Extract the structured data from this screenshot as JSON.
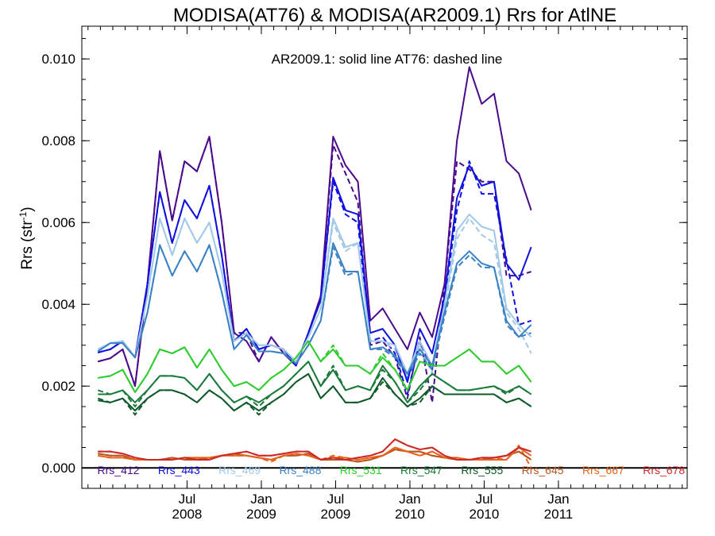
{
  "chart_data": {
    "type": "line",
    "title": "MODISA(AT76) & MODISA(AR2009.1)  Rrs for AtlNE",
    "subtitle": "AR2009.1: solid line   AT76: dashed line",
    "ylabel": "Rrs (str",
    "ylabel_sup": "-1",
    "ylabel_close": ")",
    "xlim": [
      0,
      48.9
    ],
    "ylim": [
      -0.0005,
      0.0108
    ],
    "yticks": [
      0.0,
      0.002,
      0.004,
      0.006,
      0.008,
      0.01
    ],
    "ytick_labels": [
      "0.000",
      "0.002",
      "0.004",
      "0.006",
      "0.008",
      "0.010"
    ],
    "xtick_labels": [
      {
        "pos": 8.5,
        "lines": [
          "Jul",
          "2008"
        ]
      },
      {
        "pos": 14.5,
        "lines": [
          "Jan",
          "2009"
        ]
      },
      {
        "pos": 20.5,
        "lines": [
          "Jul",
          "2009"
        ]
      },
      {
        "pos": 26.5,
        "lines": [
          "Jan",
          "2010"
        ]
      },
      {
        "pos": 32.5,
        "lines": [
          "Jul",
          "2010"
        ]
      },
      {
        "pos": 38.5,
        "lines": [
          "Jan",
          "2011"
        ]
      }
    ],
    "grid": false,
    "legend_position": "bottom",
    "zero_line": true,
    "series": [
      {
        "name": "Rrs_412",
        "color": "#4a0a8a",
        "solid": [
          0.0026,
          0.00268,
          0.0029,
          0.002,
          0.0045,
          0.00775,
          0.00605,
          0.0075,
          0.00725,
          0.0081,
          0.006,
          0.0033,
          0.0031,
          0.0026,
          0.0032,
          0.0028,
          0.0025,
          0.0033,
          0.0042,
          0.0081,
          0.0074,
          0.007,
          0.0036,
          0.0039,
          0.0034,
          0.0029,
          0.0038,
          0.0032,
          0.0045,
          0.008,
          0.0098,
          0.0089,
          0.00915,
          0.0075,
          0.0072,
          0.0063
        ],
        "dashed": [
          0.0026,
          0.00268,
          0.0029,
          0.002,
          0.0045,
          0.00775,
          0.00605,
          0.0075,
          0.00725,
          0.0081,
          0.006,
          0.0033,
          0.0033,
          0.0026,
          0.0032,
          0.0028,
          0.0025,
          0.0033,
          0.0042,
          0.0079,
          0.0072,
          0.0065,
          0.003,
          0.0031,
          0.0027,
          0.0017,
          0.0032,
          0.0016,
          0.0045,
          0.0075,
          0.0073,
          0.007,
          0.007,
          0.0047,
          0.0047,
          0.0048
        ]
      },
      {
        "name": "Rrs_443",
        "color": "#1010e0",
        "solid": [
          0.00282,
          0.0029,
          0.0031,
          0.0027,
          0.0045,
          0.00675,
          0.0055,
          0.00655,
          0.0061,
          0.0069,
          0.0052,
          0.0031,
          0.0034,
          0.0029,
          0.003,
          0.0029,
          0.0025,
          0.0033,
          0.0041,
          0.0071,
          0.0063,
          0.0062,
          0.0033,
          0.0034,
          0.003,
          0.0021,
          0.0034,
          0.0028,
          0.0042,
          0.0066,
          0.0074,
          0.0069,
          0.007,
          0.005,
          0.0046,
          0.0054
        ],
        "dashed": [
          0.00282,
          0.0029,
          0.0031,
          0.0027,
          0.0045,
          0.00675,
          0.0055,
          0.00655,
          0.0061,
          0.0069,
          0.0052,
          0.0031,
          0.0034,
          0.0029,
          0.003,
          0.0029,
          0.0025,
          0.0033,
          0.0041,
          0.007,
          0.0062,
          0.006,
          0.0031,
          0.0032,
          0.0028,
          0.0018,
          0.0031,
          0.0024,
          0.0041,
          0.0063,
          0.0075,
          0.0067,
          0.0067,
          0.0051,
          0.0035,
          0.0036
        ]
      },
      {
        "name": "Rrs_469",
        "color": "#a0c8e8",
        "solid": [
          0.0029,
          0.00305,
          0.0031,
          0.0027,
          0.0042,
          0.0061,
          0.0052,
          0.0061,
          0.0055,
          0.006,
          0.0048,
          0.0031,
          0.0033,
          0.003,
          0.003,
          0.0029,
          0.0026,
          0.0032,
          0.0039,
          0.0061,
          0.0054,
          0.0055,
          0.0031,
          0.0031,
          0.003,
          0.0023,
          0.0031,
          0.0025,
          0.004,
          0.0058,
          0.0062,
          0.0059,
          0.0058,
          0.0039,
          0.0035,
          0.0032
        ],
        "dashed": [
          0.0029,
          0.00305,
          0.0031,
          0.0027,
          0.0042,
          0.0061,
          0.0052,
          0.0061,
          0.0055,
          0.006,
          0.0048,
          0.0031,
          0.0033,
          0.003,
          0.003,
          0.0029,
          0.0026,
          0.0032,
          0.0039,
          0.006,
          0.0053,
          0.0055,
          0.0031,
          0.0031,
          0.0029,
          0.0022,
          0.003,
          0.0023,
          0.0039,
          0.0056,
          0.0061,
          0.0057,
          0.0055,
          0.0038,
          0.0034,
          0.0028
        ]
      },
      {
        "name": "Rrs_488",
        "color": "#3a82c4",
        "solid": [
          0.00285,
          0.00305,
          0.00305,
          0.0027,
          0.0038,
          0.00545,
          0.0047,
          0.0053,
          0.0048,
          0.00545,
          0.0043,
          0.0029,
          0.00325,
          0.00285,
          0.00285,
          0.0028,
          0.00255,
          0.003,
          0.0036,
          0.0055,
          0.0048,
          0.0048,
          0.0029,
          0.00295,
          0.00275,
          0.0023,
          0.0029,
          0.0025,
          0.0038,
          0.005,
          0.0053,
          0.005,
          0.0049,
          0.0036,
          0.0032,
          0.0035
        ],
        "dashed": [
          0.00285,
          0.00305,
          0.00305,
          0.0027,
          0.0038,
          0.00545,
          0.0047,
          0.0053,
          0.0048,
          0.00545,
          0.0043,
          0.0029,
          0.00325,
          0.00285,
          0.00285,
          0.0028,
          0.00255,
          0.003,
          0.0036,
          0.0054,
          0.0047,
          0.0048,
          0.0029,
          0.0029,
          0.0027,
          0.0022,
          0.0028,
          0.0024,
          0.0037,
          0.0049,
          0.0052,
          0.0049,
          0.0049,
          0.0035,
          0.0032,
          0.0033
        ]
      },
      {
        "name": "Rrs_531",
        "color": "#2ecc2e",
        "solid": [
          0.0022,
          0.00225,
          0.0024,
          0.00185,
          0.0023,
          0.0029,
          0.0028,
          0.00295,
          0.00245,
          0.0029,
          0.0024,
          0.002,
          0.0021,
          0.0019,
          0.0022,
          0.0024,
          0.0027,
          0.0031,
          0.0026,
          0.0029,
          0.0025,
          0.0025,
          0.0023,
          0.0027,
          0.0024,
          0.0019,
          0.0026,
          0.0025,
          0.0025,
          0.0027,
          0.0029,
          0.0026,
          0.0026,
          0.0023,
          0.0025,
          0.0021
        ],
        "dashed": [
          0.0022,
          0.00225,
          0.0024,
          0.00185,
          0.0023,
          0.0029,
          0.0028,
          0.00295,
          0.00245,
          0.0029,
          0.0024,
          0.002,
          0.0021,
          0.0019,
          0.0022,
          0.0024,
          0.0027,
          0.0031,
          0.0026,
          0.003,
          0.0025,
          0.0025,
          0.0023,
          0.0028,
          0.0024,
          0.0019,
          0.0026,
          0.0025,
          0.0025,
          0.0027,
          0.0029,
          0.0026,
          0.0026,
          0.0023,
          0.0025,
          0.0021
        ]
      },
      {
        "name": "Rrs_547",
        "color": "#1a7a3a",
        "solid": [
          0.0018,
          0.0018,
          0.0019,
          0.0016,
          0.0019,
          0.00225,
          0.00225,
          0.0022,
          0.0019,
          0.0023,
          0.0019,
          0.0016,
          0.00175,
          0.0016,
          0.0018,
          0.002,
          0.0023,
          0.0026,
          0.002,
          0.0024,
          0.0019,
          0.002,
          0.0019,
          0.0025,
          0.0021,
          0.0016,
          0.002,
          0.0023,
          0.0021,
          0.0019,
          0.0019,
          0.00195,
          0.002,
          0.00185,
          0.002,
          0.0018
        ],
        "dashed": [
          0.0019,
          0.0018,
          0.0019,
          0.0015,
          0.0019,
          0.00225,
          0.00225,
          0.0022,
          0.0019,
          0.0023,
          0.0019,
          0.0016,
          0.00175,
          0.0015,
          0.0018,
          0.002,
          0.0023,
          0.0026,
          0.002,
          0.0025,
          0.0019,
          0.002,
          0.0019,
          0.0024,
          0.0021,
          0.0016,
          0.0019,
          0.0023,
          0.0021,
          0.0019,
          0.0019,
          0.00195,
          0.002,
          0.0018,
          0.002,
          0.0018
        ]
      },
      {
        "name": "Rrs_555",
        "color": "#0e5a2a",
        "solid": [
          0.00165,
          0.0016,
          0.0017,
          0.0014,
          0.0017,
          0.0019,
          0.0019,
          0.0018,
          0.0016,
          0.0019,
          0.0017,
          0.0014,
          0.0016,
          0.0014,
          0.0016,
          0.0018,
          0.0021,
          0.0023,
          0.0017,
          0.002,
          0.0016,
          0.0016,
          0.0017,
          0.0022,
          0.0018,
          0.0015,
          0.0017,
          0.002,
          0.0018,
          0.0018,
          0.0018,
          0.0018,
          0.0018,
          0.0016,
          0.0017,
          0.0015
        ],
        "dashed": [
          0.0017,
          0.0016,
          0.0017,
          0.0013,
          0.0017,
          0.0019,
          0.0019,
          0.0018,
          0.0016,
          0.0019,
          0.0017,
          0.0014,
          0.0016,
          0.0013,
          0.0016,
          0.0018,
          0.0021,
          0.0023,
          0.0017,
          0.002,
          0.0016,
          0.0016,
          0.0017,
          0.0021,
          0.0018,
          0.0015,
          0.0016,
          0.002,
          0.0018,
          0.0018,
          0.0018,
          0.0018,
          0.0018,
          0.0016,
          0.0017,
          0.0015
        ]
      },
      {
        "name": "Rrs_645",
        "color": "#b8541e",
        "solid": [
          0.00035,
          0.0003,
          0.0003,
          0.0002,
          0.0002,
          0.0002,
          0.00025,
          0.0002,
          0.0002,
          0.00025,
          0.0003,
          0.00035,
          0.0003,
          0.00025,
          0.0002,
          0.0003,
          0.0003,
          0.00035,
          0.0002,
          0.0002,
          0.0002,
          0.00015,
          0.0002,
          0.0003,
          0.00045,
          0.0004,
          0.0004,
          0.0003,
          0.00025,
          0.0002,
          0.0002,
          0.0002,
          0.00025,
          0.0003,
          0.0004,
          0.0002
        ],
        "dashed": [
          0.00035,
          0.0003,
          0.0003,
          0.0002,
          0.0002,
          0.0002,
          0.00025,
          0.0002,
          0.0002,
          0.00025,
          0.0003,
          0.00035,
          0.0003,
          0.00025,
          0.0002,
          0.0003,
          0.0003,
          0.00035,
          0.0002,
          0.0002,
          0.0002,
          0.00015,
          0.0002,
          0.0003,
          0.00045,
          0.0004,
          0.0004,
          0.0003,
          0.00025,
          0.0002,
          0.0002,
          0.0002,
          0.00025,
          0.0003,
          0.0004,
          0.0002
        ]
      },
      {
        "name": "Rrs_667",
        "color": "#e8641a",
        "solid": [
          0.0003,
          0.00025,
          0.00025,
          0.0002,
          0.0002,
          0.0002,
          0.0002,
          0.00025,
          0.00025,
          0.00025,
          0.0003,
          0.0003,
          0.0003,
          0.00025,
          0.0002,
          0.0003,
          0.00035,
          0.0003,
          0.0002,
          0.00025,
          0.00025,
          0.0002,
          0.00025,
          0.0003,
          0.0005,
          0.0004,
          0.0003,
          0.0004,
          0.00025,
          0.00025,
          0.0002,
          0.0002,
          0.0002,
          0.0002,
          0.0005,
          0.0003
        ],
        "dashed": [
          0.0003,
          0.00025,
          0.00025,
          0.0002,
          0.0002,
          0.0002,
          0.0002,
          0.00025,
          0.00025,
          0.00025,
          0.0003,
          0.0003,
          0.0003,
          0.00025,
          0.00015,
          0.0003,
          0.00035,
          0.0003,
          0.0002,
          0.0003,
          0.00025,
          0.0002,
          0.00025,
          0.0003,
          0.0005,
          0.0004,
          0.0003,
          0.0004,
          0.00025,
          0.00025,
          0.0002,
          0.0002,
          0.00025,
          0.0002,
          0.00055,
          0.0
        ]
      },
      {
        "name": "Rrs_678",
        "color": "#cc2828",
        "solid": [
          0.0004,
          0.0004,
          0.00035,
          0.00025,
          0.0002,
          0.0002,
          0.0002,
          0.00025,
          0.0002,
          0.0002,
          0.0003,
          0.00035,
          0.0004,
          0.0003,
          0.0003,
          0.00035,
          0.0004,
          0.0004,
          0.0002,
          0.00025,
          0.0002,
          0.00025,
          0.0003,
          0.0004,
          0.0007,
          0.00055,
          0.00045,
          0.0005,
          0.0003,
          0.0002,
          0.0002,
          0.00025,
          0.00025,
          0.0003,
          0.0005,
          0.0004
        ],
        "dashed": [
          0.0004,
          0.0004,
          0.00035,
          0.00025,
          0.0002,
          0.0002,
          0.0002,
          0.00025,
          0.0002,
          0.0002,
          0.0003,
          0.00035,
          0.0004,
          0.0003,
          0.0003,
          0.00035,
          0.0004,
          0.0004,
          0.0002,
          0.00025,
          0.0002,
          0.00025,
          0.0003,
          0.0004,
          0.0007,
          0.00055,
          0.00045,
          0.0005,
          0.0003,
          0.0002,
          0.0002,
          0.00025,
          0.00025,
          0.0003,
          0.0005,
          0.0004
        ]
      }
    ]
  }
}
